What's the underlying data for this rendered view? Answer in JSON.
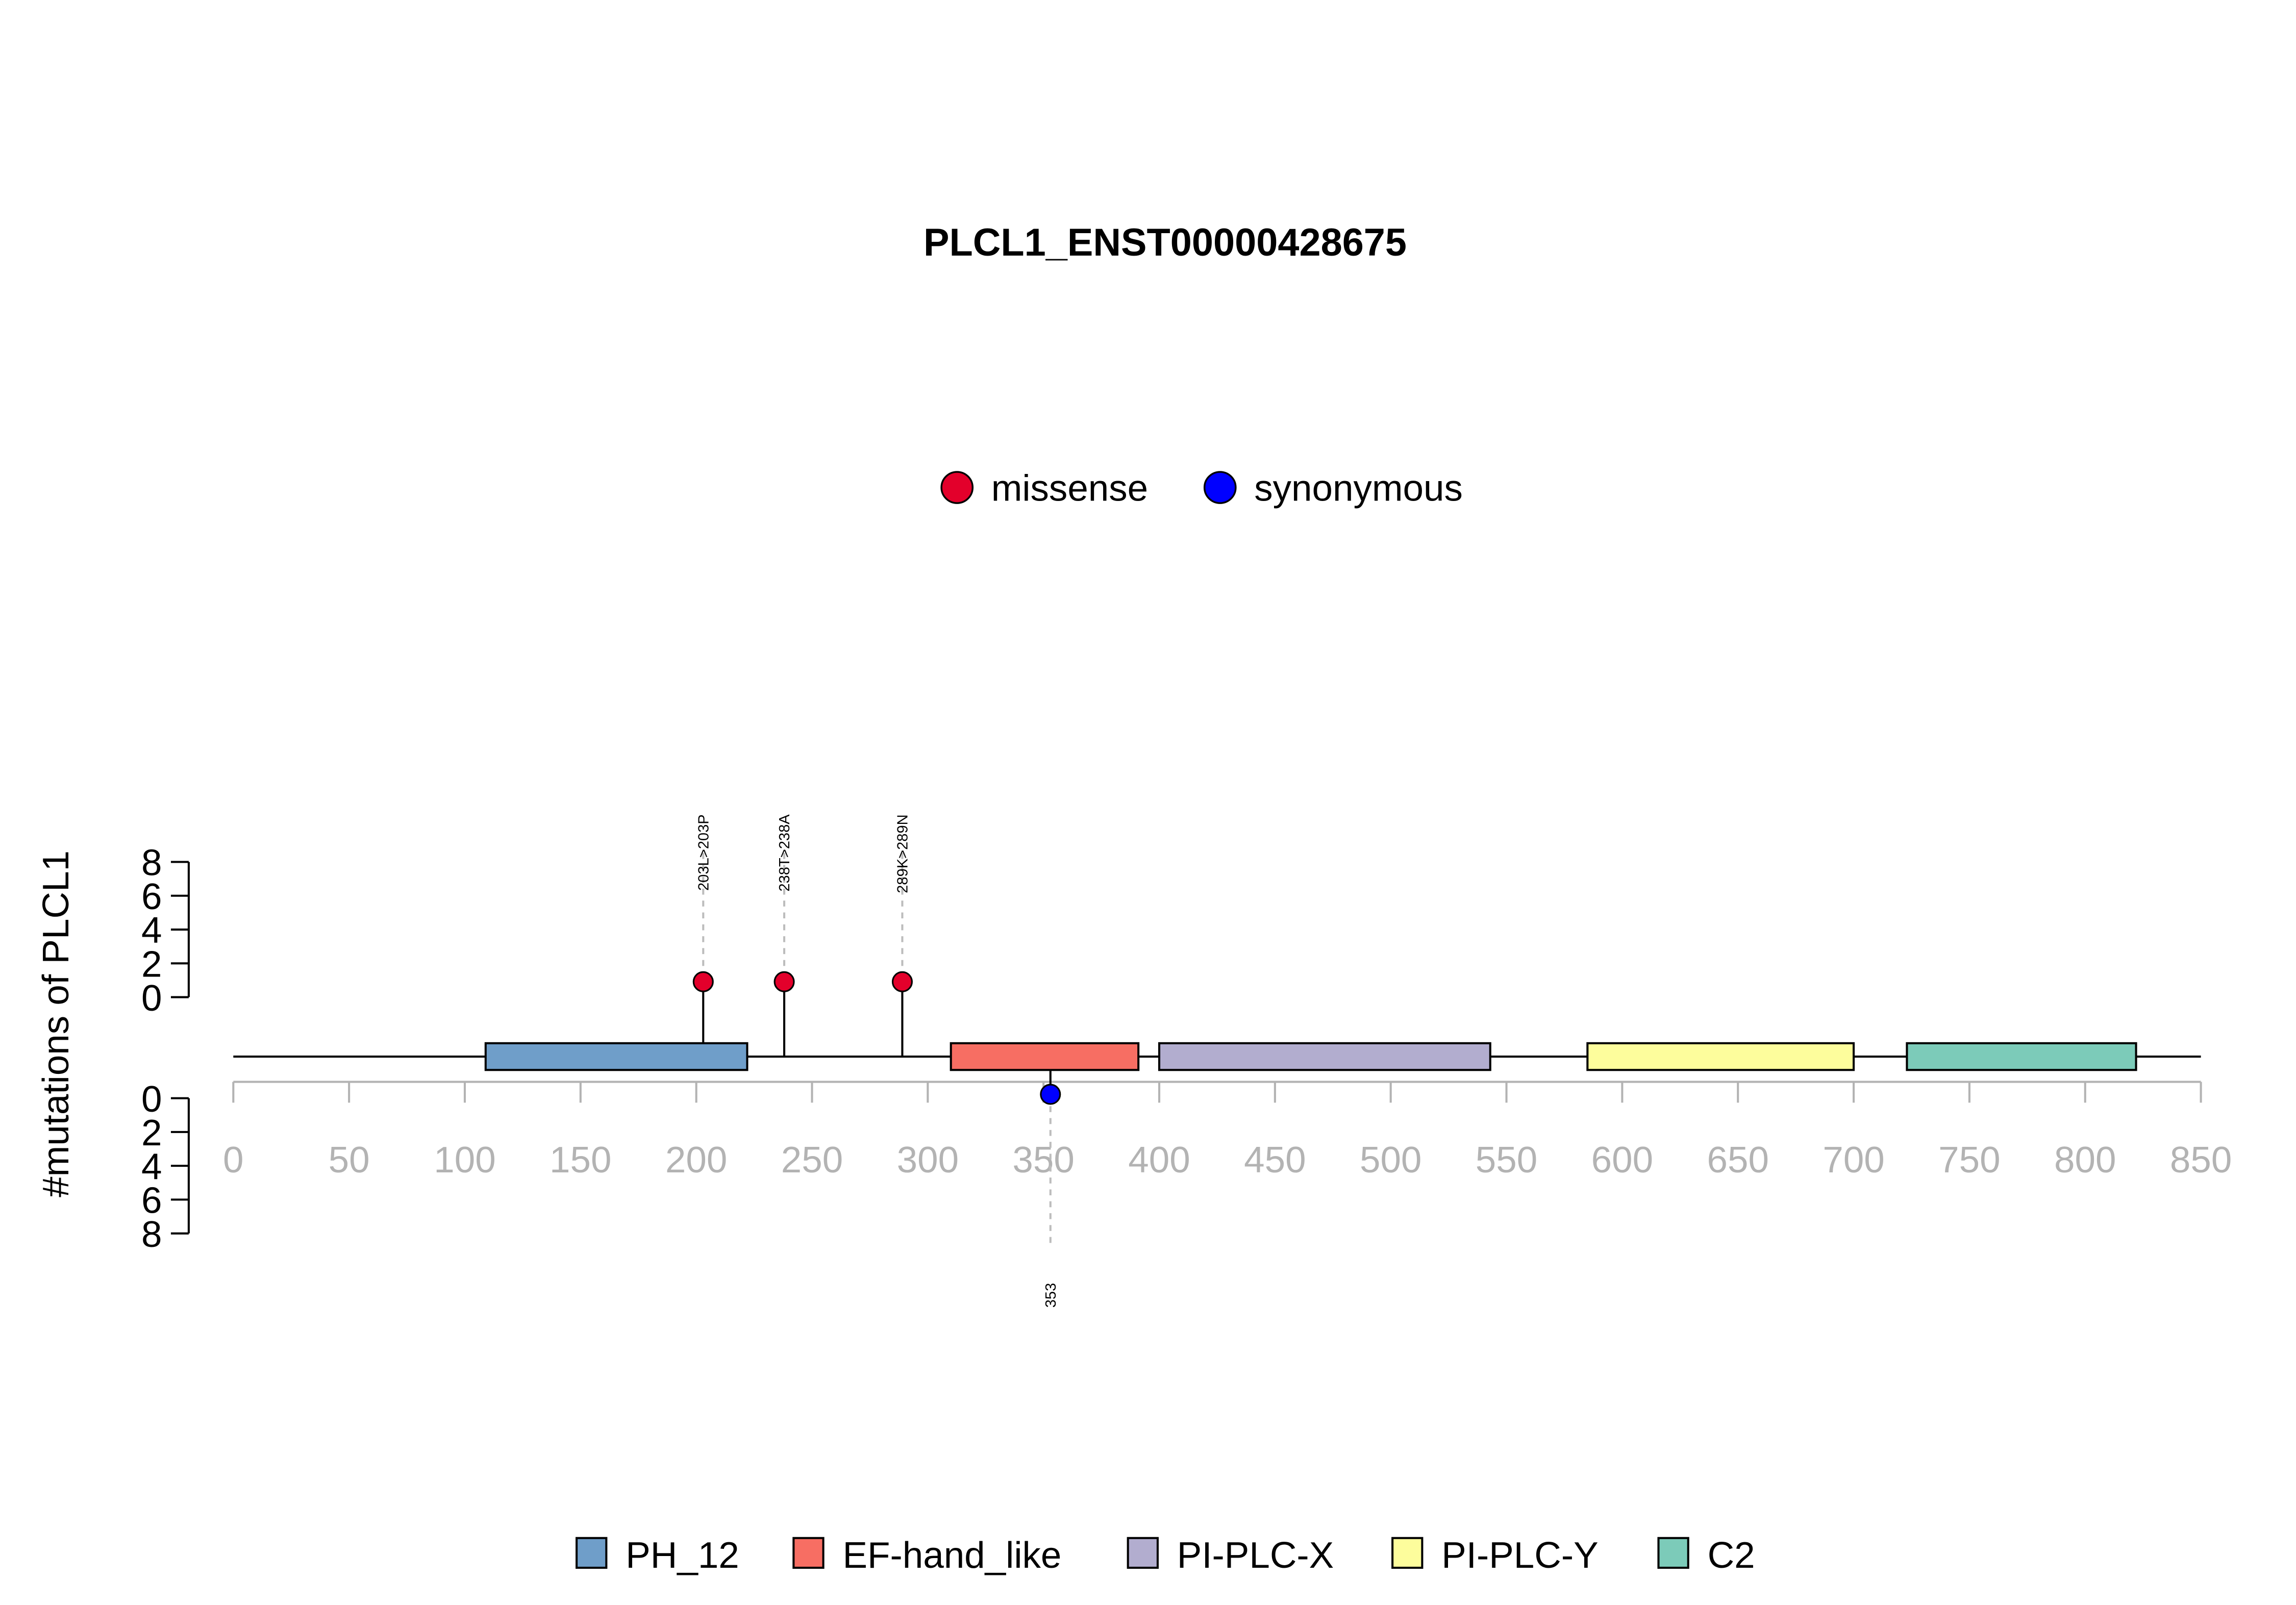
{
  "chart_data": {
    "type": "lollipop",
    "title": "PLCL1_ENST00000428675",
    "ylabel": "#mutations of PLCL1",
    "protein_length": 850,
    "xlim": [
      0,
      850
    ],
    "xticks": [
      0,
      50,
      100,
      150,
      200,
      250,
      300,
      350,
      400,
      450,
      500,
      550,
      600,
      650,
      700,
      750,
      800,
      850
    ],
    "ylim_top": [
      0,
      8
    ],
    "ylim_bottom": [
      0,
      8
    ],
    "yticks": [
      0,
      2,
      4,
      6,
      8
    ],
    "mutation_legend": [
      {
        "label": "missense",
        "color": "#e3002b"
      },
      {
        "label": "synonymous",
        "color": "#0000ff"
      }
    ],
    "mutations": [
      {
        "position": 203,
        "count": 1,
        "type": "missense",
        "label": "203L>203P",
        "side": "top"
      },
      {
        "position": 238,
        "count": 1,
        "type": "missense",
        "label": "238T>238A",
        "side": "top"
      },
      {
        "position": 289,
        "count": 1,
        "type": "missense",
        "label": "289K>289N",
        "side": "top"
      },
      {
        "position": 353,
        "count": 1,
        "type": "synonymous",
        "label": "353",
        "side": "bottom"
      }
    ],
    "domains": [
      {
        "name": "PH_12",
        "start": 109,
        "end": 222,
        "color": "#6f9ec9"
      },
      {
        "name": "EF-hand_like",
        "start": 310,
        "end": 391,
        "color": "#f76e63"
      },
      {
        "name": "PI-PLC-X",
        "start": 400,
        "end": 543,
        "color": "#b2adcf"
      },
      {
        "name": "PI-PLC-Y",
        "start": 585,
        "end": 700,
        "color": "#fdfd9c"
      },
      {
        "name": "C2",
        "start": 723,
        "end": 822,
        "color": "#7ccbb9"
      }
    ],
    "legend_placement": "bottom-center",
    "grid": false
  }
}
